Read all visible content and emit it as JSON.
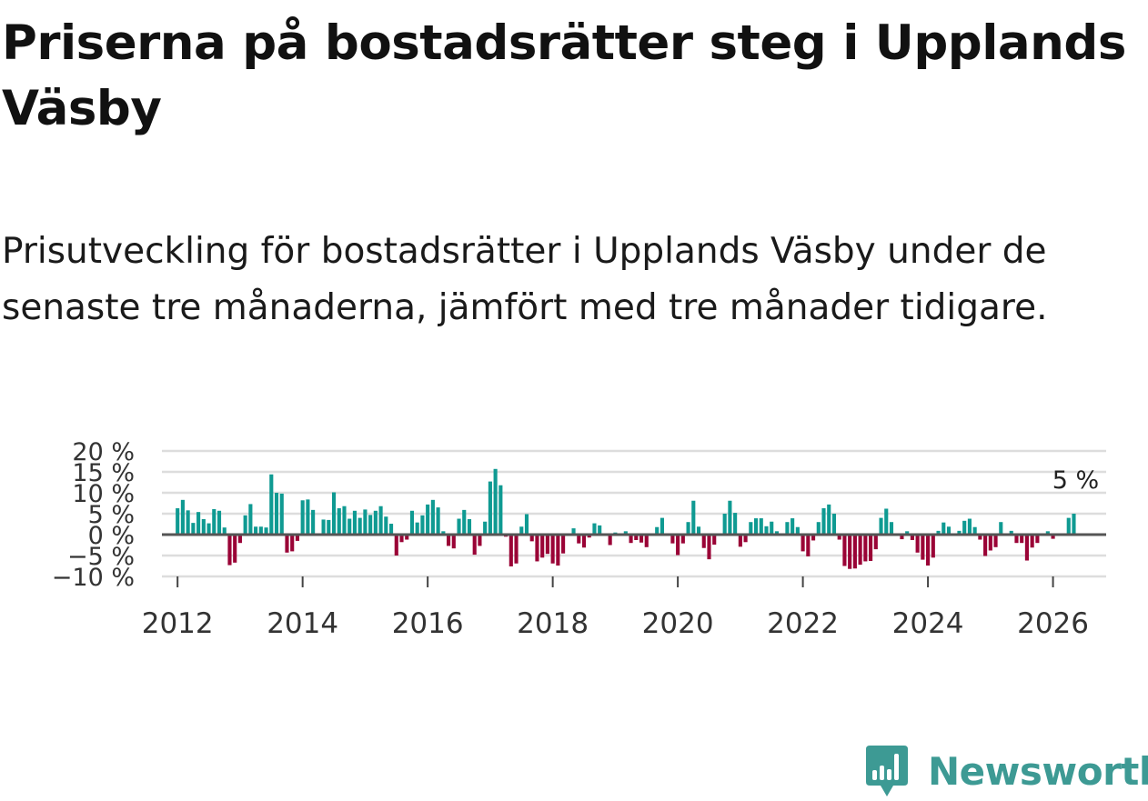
{
  "header": {
    "title": "Priserna på bostadsrätter steg i Upplands Väsby",
    "subtitle": "Prisutveckling för bostadsrätter i Upplands Väsby under de senaste tre månaderna, jämfört med tre månader tidigare."
  },
  "colors": {
    "positive": "#0f9a92",
    "negative": "#9a0336",
    "zero_line": "#555555",
    "grid": "#dddddd"
  },
  "brand": {
    "name": "Newsworthy",
    "icon": "bar-chart-pin-icon"
  },
  "chart_data": {
    "type": "bar",
    "title": "Priserna på bostadsrätter steg i Upplands Väsby",
    "xlabel": "",
    "ylabel": "",
    "ylim": [
      -10,
      20
    ],
    "xlim": [
      2011.75,
      2026.85
    ],
    "y_ticks": [
      -10,
      -5,
      0,
      5,
      10,
      15,
      20
    ],
    "y_tick_labels": [
      "−10 %",
      "−5 %",
      "0 %",
      "5 %",
      "10 %",
      "15 %",
      "20 %"
    ],
    "x_ticks": [
      2012,
      2014,
      2016,
      2018,
      2020,
      2022,
      2024,
      2026
    ],
    "x_tick_labels": [
      "2012",
      "2014",
      "2016",
      "2018",
      "2020",
      "2022",
      "2024",
      "2026"
    ],
    "last_value_label": "5 %",
    "start": "2012-01",
    "values": [
      6.3,
      8.3,
      5.8,
      2.8,
      5.4,
      3.7,
      2.7,
      6.1,
      5.7,
      1.7,
      -7.3,
      -6.7,
      -2.0,
      4.6,
      7.3,
      1.9,
      1.9,
      1.7,
      14.4,
      10.0,
      9.8,
      -4.3,
      -4.0,
      -1.5,
      8.2,
      8.4,
      5.9,
      0.2,
      3.6,
      3.5,
      10.1,
      6.3,
      6.8,
      3.8,
      5.7,
      4.0,
      6.0,
      4.7,
      5.7,
      6.8,
      4.3,
      2.6,
      -5.0,
      -1.8,
      -1.2,
      5.7,
      2.9,
      4.6,
      7.2,
      8.3,
      6.5,
      0.8,
      -2.7,
      -3.3,
      3.8,
      5.9,
      3.7,
      -4.8,
      -2.7,
      3.1,
      12.7,
      15.7,
      11.8,
      -0.5,
      -7.6,
      -6.9,
      1.9,
      4.9,
      -1.6,
      -6.4,
      -5.5,
      -4.6,
      -6.9,
      -7.4,
      -4.5,
      0.2,
      1.5,
      -2.1,
      -3.1,
      -0.7,
      2.7,
      2.2,
      0.3,
      -2.5,
      0.5,
      0.2,
      0.8,
      -2.0,
      -1.3,
      -1.9,
      -3.0,
      0.3,
      1.8,
      4.0,
      0.1,
      -2.1,
      -4.9,
      -2.1,
      3.0,
      8.1,
      1.9,
      -3.2,
      -5.9,
      -2.4,
      0.2,
      5.0,
      8.1,
      5.2,
      -2.9,
      -1.8,
      3.0,
      3.9,
      3.9,
      2.0,
      3.1,
      0.8,
      0.0,
      3.0,
      3.9,
      1.8,
      -4.0,
      -5.2,
      -1.4,
      3.0,
      6.3,
      7.2,
      5.0,
      -1.2,
      -7.5,
      -8.2,
      -8.1,
      -7.2,
      -6.4,
      -6.3,
      -3.5,
      4.0,
      6.2,
      3.0,
      0.2,
      -1.1,
      0.8,
      -1.3,
      -4.3,
      -6.0,
      -7.4,
      -5.5,
      0.9,
      2.9,
      1.9,
      0.2,
      0.9,
      3.3,
      3.8,
      1.8,
      -1.2,
      -5.1,
      -3.8,
      -3.0,
      3.0,
      0.2,
      0.9,
      -2.0,
      -2.0,
      -6.2,
      -3.1,
      -2.0,
      -0.2,
      0.8,
      -1.0,
      0.2,
      0.1,
      4.0,
      5.0
    ]
  }
}
